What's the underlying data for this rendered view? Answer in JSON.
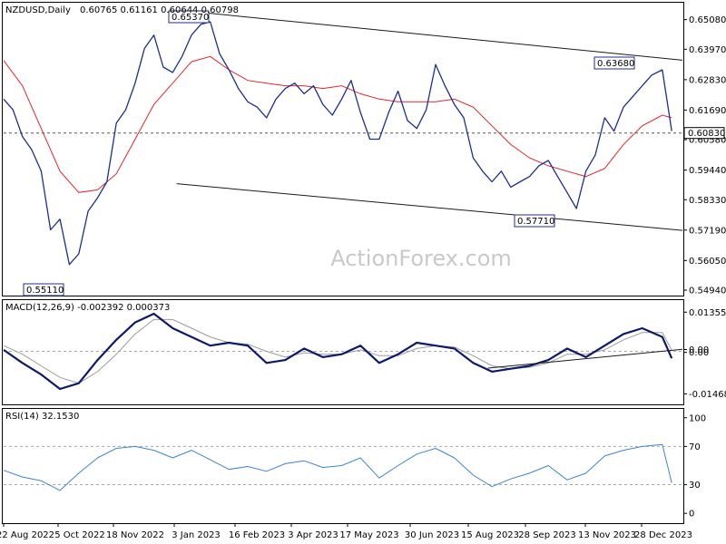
{
  "watermark": "ActionForex.com",
  "colors": {
    "price": "#1c2f8f",
    "ma": "#e2262b",
    "macd": "#0d1a6b",
    "signal": "#9b9b9b",
    "rsi": "#3b86d3",
    "trend": "#1a1a1a",
    "grid": "#a8a8a8"
  },
  "chart_data": [
    {
      "type": "line",
      "title": "NZDUSD,Daily",
      "ohlc_readout": "0.60765 0.61161 0.60644 0.60798",
      "x_ticks": [
        "22 Aug 2022",
        "5 Oct 2022",
        "18 Nov 2022",
        "3 Jan 2023",
        "16 Feb 2023",
        "3 Apr 2023",
        "17 May 2023",
        "30 Jun 2023",
        "15 Aug 2023",
        "28 Sep 2023",
        "13 Nov 2023",
        "28 Dec 2023"
      ],
      "y_ticks": [
        "0.65080",
        "0.63970",
        "0.62830",
        "0.61690",
        "0.60580",
        "0.59440",
        "0.58330",
        "0.57190",
        "0.56050",
        "0.54940"
      ],
      "ylim": [
        0.5477,
        0.6568
      ],
      "current_price": "0.60830",
      "annotations": [
        {
          "text": "0.65370",
          "date": "2023-01-12",
          "value": 0.6537
        },
        {
          "text": "0.63680",
          "date": "2023-12-26",
          "value": 0.6368
        },
        {
          "text": "0.57710",
          "date": "2023-10-26",
          "value": 0.5771
        },
        {
          "text": "0.55110",
          "date": "2022-10-13",
          "value": 0.5511
        }
      ],
      "series": [
        {
          "type": "line",
          "x": [
            "2022-08-22",
            "2022-08-29",
            "2022-09-05",
            "2022-09-12",
            "2022-09-19",
            "2022-09-26",
            "2022-10-03",
            "2022-10-10",
            "2022-10-17",
            "2022-10-24",
            "2022-10-31",
            "2022-11-07",
            "2022-11-14",
            "2022-11-21",
            "2022-11-28",
            "2022-12-05",
            "2022-12-12",
            "2022-12-19",
            "2022-12-26",
            "2023-01-02",
            "2023-01-09",
            "2023-01-16",
            "2023-01-23",
            "2023-01-30",
            "2023-02-06",
            "2023-02-13",
            "2023-02-20",
            "2023-02-27",
            "2023-03-06",
            "2023-03-13",
            "2023-03-20",
            "2023-03-27",
            "2023-04-03",
            "2023-04-10",
            "2023-04-17",
            "2023-04-24",
            "2023-05-01",
            "2023-05-08",
            "2023-05-15",
            "2023-05-22",
            "2023-05-29",
            "2023-06-05",
            "2023-06-12",
            "2023-06-19",
            "2023-06-26",
            "2023-07-03",
            "2023-07-10",
            "2023-07-17",
            "2023-07-24",
            "2023-07-31",
            "2023-08-07",
            "2023-08-14",
            "2023-08-21",
            "2023-08-28",
            "2023-09-04",
            "2023-09-11",
            "2023-09-18",
            "2023-09-25",
            "2023-10-02",
            "2023-10-09",
            "2023-10-16",
            "2023-10-23",
            "2023-10-30",
            "2023-11-06",
            "2023-11-13",
            "2023-11-20",
            "2023-11-27",
            "2023-12-04",
            "2023-12-11",
            "2023-12-18",
            "2023-12-26",
            "2024-01-02"
          ],
          "values": [
            0.621,
            0.617,
            0.607,
            0.602,
            0.594,
            0.572,
            0.576,
            0.559,
            0.563,
            0.579,
            0.584,
            0.59,
            0.612,
            0.617,
            0.627,
            0.64,
            0.645,
            0.633,
            0.631,
            0.637,
            0.645,
            0.649,
            0.65,
            0.638,
            0.632,
            0.625,
            0.62,
            0.618,
            0.614,
            0.621,
            0.625,
            0.627,
            0.623,
            0.626,
            0.619,
            0.615,
            0.621,
            0.628,
            0.616,
            0.606,
            0.606,
            0.616,
            0.624,
            0.613,
            0.61,
            0.617,
            0.634,
            0.626,
            0.619,
            0.614,
            0.599,
            0.594,
            0.59,
            0.594,
            0.588,
            0.59,
            0.592,
            0.596,
            0.598,
            0.592,
            0.586,
            0.58,
            0.594,
            0.6,
            0.614,
            0.609,
            0.618,
            0.622,
            0.626,
            0.63,
            0.632,
            0.609
          ]
        },
        {
          "type": "line",
          "x": [
            "2022-08-22",
            "2022-09-05",
            "2022-09-19",
            "2022-10-03",
            "2022-10-17",
            "2022-10-31",
            "2022-11-14",
            "2022-11-28",
            "2022-12-12",
            "2022-12-26",
            "2023-01-09",
            "2023-01-23",
            "2023-02-06",
            "2023-02-20",
            "2023-03-06",
            "2023-03-20",
            "2023-04-03",
            "2023-04-17",
            "2023-05-01",
            "2023-05-15",
            "2023-05-29",
            "2023-06-12",
            "2023-06-26",
            "2023-07-10",
            "2023-07-24",
            "2023-08-07",
            "2023-08-21",
            "2023-09-04",
            "2023-09-18",
            "2023-10-02",
            "2023-10-16",
            "2023-10-30",
            "2023-11-13",
            "2023-11-27",
            "2023-12-11",
            "2023-12-26",
            "2024-01-02"
          ],
          "values": [
            0.6355,
            0.626,
            0.61,
            0.594,
            0.586,
            0.587,
            0.593,
            0.606,
            0.619,
            0.627,
            0.635,
            0.637,
            0.632,
            0.628,
            0.627,
            0.626,
            0.626,
            0.625,
            0.626,
            0.623,
            0.621,
            0.62,
            0.62,
            0.62,
            0.621,
            0.618,
            0.611,
            0.604,
            0.599,
            0.596,
            0.594,
            0.592,
            0.595,
            0.604,
            0.611,
            0.615,
            0.614
          ]
        }
      ],
      "trendlines": [
        {
          "from": {
            "date": "2023-01-12",
            "value": 0.6537
          },
          "to": {
            "date": "2024-01-10",
            "value": 0.6356
          }
        },
        {
          "from": {
            "date": "2022-12-29",
            "value": 0.5893
          },
          "to": {
            "date": "2024-01-10",
            "value": 0.5718
          }
        }
      ]
    },
    {
      "type": "line",
      "title": "MACD(12,26,9) -0.002392 0.000373",
      "y_ticks": [
        "0.013555",
        "0.00",
        "0.00",
        "-0.014684"
      ],
      "ylim": [
        -0.018,
        0.0174
      ],
      "series": [
        {
          "type": "line",
          "x": [
            "2022-08-22",
            "2022-09-05",
            "2022-09-19",
            "2022-10-03",
            "2022-10-17",
            "2022-10-31",
            "2022-11-14",
            "2022-11-28",
            "2022-12-12",
            "2022-12-26",
            "2023-01-09",
            "2023-01-23",
            "2023-02-06",
            "2023-02-20",
            "2023-03-06",
            "2023-03-20",
            "2023-04-03",
            "2023-04-17",
            "2023-05-01",
            "2023-05-15",
            "2023-05-29",
            "2023-06-12",
            "2023-06-26",
            "2023-07-10",
            "2023-07-24",
            "2023-08-07",
            "2023-08-21",
            "2023-09-04",
            "2023-09-18",
            "2023-10-02",
            "2023-10-16",
            "2023-10-30",
            "2023-11-13",
            "2023-11-27",
            "2023-12-11",
            "2023-12-26",
            "2024-01-02"
          ],
          "values": [
            0.0005,
            -0.004,
            -0.008,
            -0.013,
            -0.011,
            -0.003,
            0.004,
            0.01,
            0.013,
            0.008,
            0.005,
            0.002,
            0.003,
            0.002,
            -0.004,
            -0.003,
            0.001,
            -0.002,
            -0.001,
            0.002,
            -0.004,
            -0.001,
            0.003,
            0.002,
            0.001,
            -0.004,
            -0.007,
            -0.006,
            -0.005,
            -0.003,
            0.001,
            -0.002,
            0.002,
            0.006,
            0.008,
            0.005,
            -0.0024
          ]
        },
        {
          "type": "line",
          "x": [
            "2022-08-22",
            "2022-09-05",
            "2022-09-19",
            "2022-10-03",
            "2022-10-17",
            "2022-10-31",
            "2022-11-14",
            "2022-11-28",
            "2022-12-12",
            "2022-12-26",
            "2023-01-09",
            "2023-01-23",
            "2023-02-06",
            "2023-02-20",
            "2023-03-06",
            "2023-03-20",
            "2023-04-03",
            "2023-04-17",
            "2023-05-01",
            "2023-05-15",
            "2023-05-29",
            "2023-06-12",
            "2023-06-26",
            "2023-07-10",
            "2023-07-24",
            "2023-08-07",
            "2023-08-21",
            "2023-09-04",
            "2023-09-18",
            "2023-10-02",
            "2023-10-16",
            "2023-10-30",
            "2023-11-13",
            "2023-11-27",
            "2023-12-11",
            "2023-12-26",
            "2024-01-02"
          ],
          "values": [
            0.002,
            -0.001,
            -0.005,
            -0.009,
            -0.011,
            -0.007,
            -0.001,
            0.006,
            0.011,
            0.011,
            0.008,
            0.005,
            0.003,
            0.0025,
            0.0,
            -0.002,
            -0.0005,
            -0.001,
            -0.001,
            0.0005,
            -0.0015,
            -0.0015,
            0.001,
            0.002,
            0.0015,
            -0.0015,
            -0.005,
            -0.006,
            -0.0055,
            -0.004,
            -0.001,
            -0.001,
            0.0005,
            0.004,
            0.0065,
            0.0065,
            0.0004
          ]
        }
      ],
      "trendlines": [
        {
          "from": {
            "date": "2023-08-18",
            "value": -0.0058
          },
          "to": {
            "date": "2024-01-10",
            "value": 0.0007
          }
        }
      ]
    },
    {
      "type": "line",
      "title": "RSI(14) 32.1530",
      "y_ticks": [
        "100",
        "70",
        "30",
        "0"
      ],
      "ylim": [
        -9.3,
        108.3
      ],
      "series": [
        {
          "type": "line",
          "x": [
            "2022-08-22",
            "2022-09-05",
            "2022-09-19",
            "2022-10-03",
            "2022-10-17",
            "2022-10-31",
            "2022-11-14",
            "2022-11-28",
            "2022-12-12",
            "2022-12-26",
            "2023-01-09",
            "2023-01-23",
            "2023-02-06",
            "2023-02-20",
            "2023-03-06",
            "2023-03-20",
            "2023-04-03",
            "2023-04-17",
            "2023-05-01",
            "2023-05-15",
            "2023-05-29",
            "2023-06-12",
            "2023-06-26",
            "2023-07-10",
            "2023-07-24",
            "2023-08-07",
            "2023-08-21",
            "2023-09-04",
            "2023-09-18",
            "2023-10-02",
            "2023-10-16",
            "2023-10-30",
            "2023-11-13",
            "2023-11-27",
            "2023-12-11",
            "2023-12-26",
            "2024-01-02"
          ],
          "values": [
            45,
            38,
            34,
            24,
            42,
            58,
            68,
            70,
            66,
            58,
            66,
            56,
            46,
            49,
            44,
            52,
            55,
            48,
            50,
            58,
            37,
            50,
            62,
            68,
            58,
            40,
            28,
            36,
            42,
            50,
            35,
            42,
            60,
            66,
            70,
            72,
            32
          ]
        }
      ]
    }
  ]
}
